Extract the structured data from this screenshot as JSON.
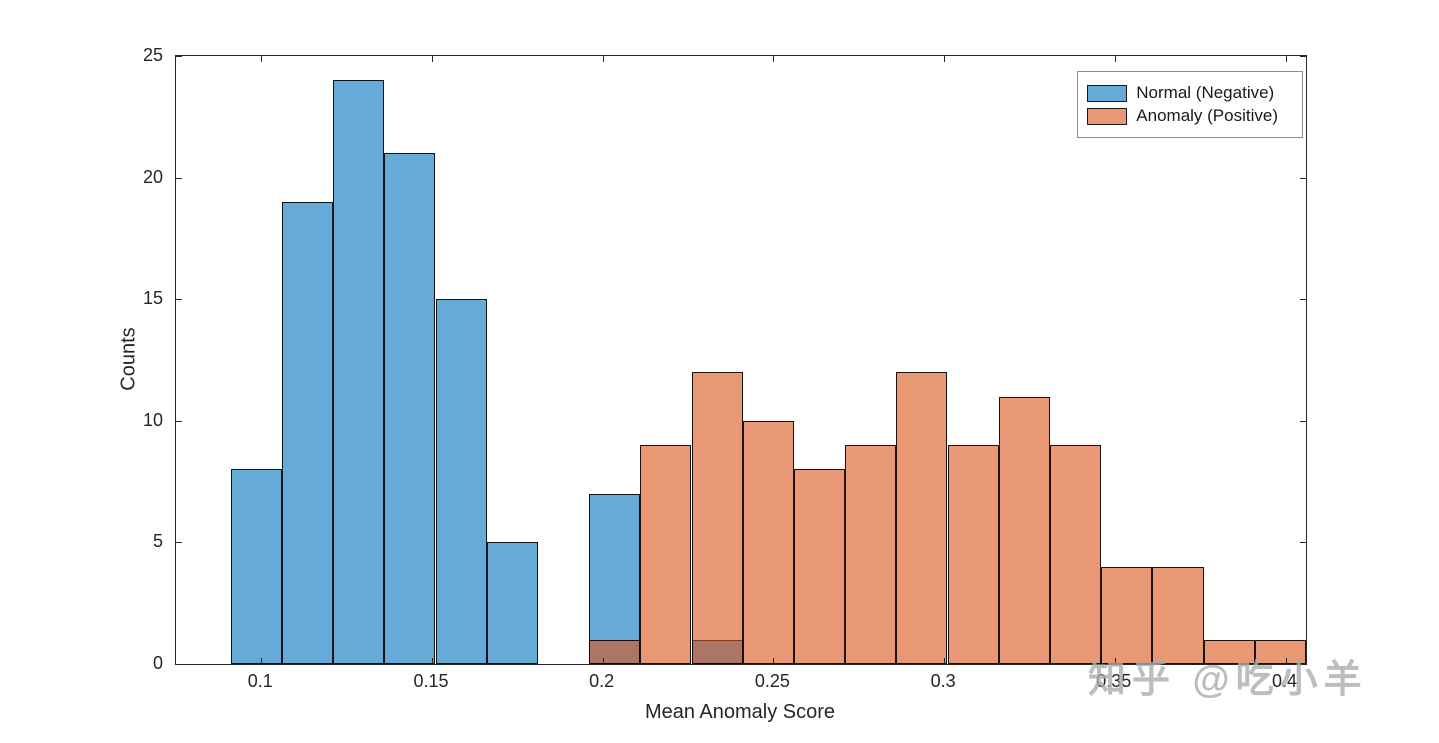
{
  "watermark": "知乎 @吃小羊",
  "chart_data": {
    "type": "bar",
    "variant": "overlaid-histogram",
    "title": "",
    "xlabel": "Mean Anomaly Score",
    "ylabel": "Counts",
    "xlim": [
      0.075,
      0.406
    ],
    "ylim": [
      0,
      25
    ],
    "xticks": [
      0.1,
      0.15,
      0.2,
      0.25,
      0.3,
      0.35,
      0.4
    ],
    "yticks": [
      0,
      5,
      10,
      15,
      20,
      25
    ],
    "grid": false,
    "legend_position": "top-right",
    "bin_width": 0.015,
    "series": [
      {
        "name": "Normal (Negative)",
        "color": "#0072BD",
        "face_alpha": 0.6,
        "edge_color": "#000000",
        "bin_edges": [
          0.091,
          0.106,
          0.121,
          0.136,
          0.151,
          0.166,
          0.181,
          0.196,
          0.211,
          0.226,
          0.241
        ],
        "counts": [
          8,
          19,
          24,
          21,
          15,
          5,
          0,
          7,
          0,
          1
        ]
      },
      {
        "name": "Anomaly (Positive)",
        "color": "#D95319",
        "face_alpha": 0.6,
        "edge_color": "#000000",
        "bin_edges": [
          0.196,
          0.211,
          0.226,
          0.241,
          0.256,
          0.271,
          0.286,
          0.301,
          0.316,
          0.331,
          0.346,
          0.361,
          0.376,
          0.391,
          0.406
        ],
        "counts": [
          1,
          9,
          12,
          10,
          8,
          9,
          12,
          9,
          11,
          9,
          4,
          4,
          1,
          1
        ]
      }
    ]
  }
}
